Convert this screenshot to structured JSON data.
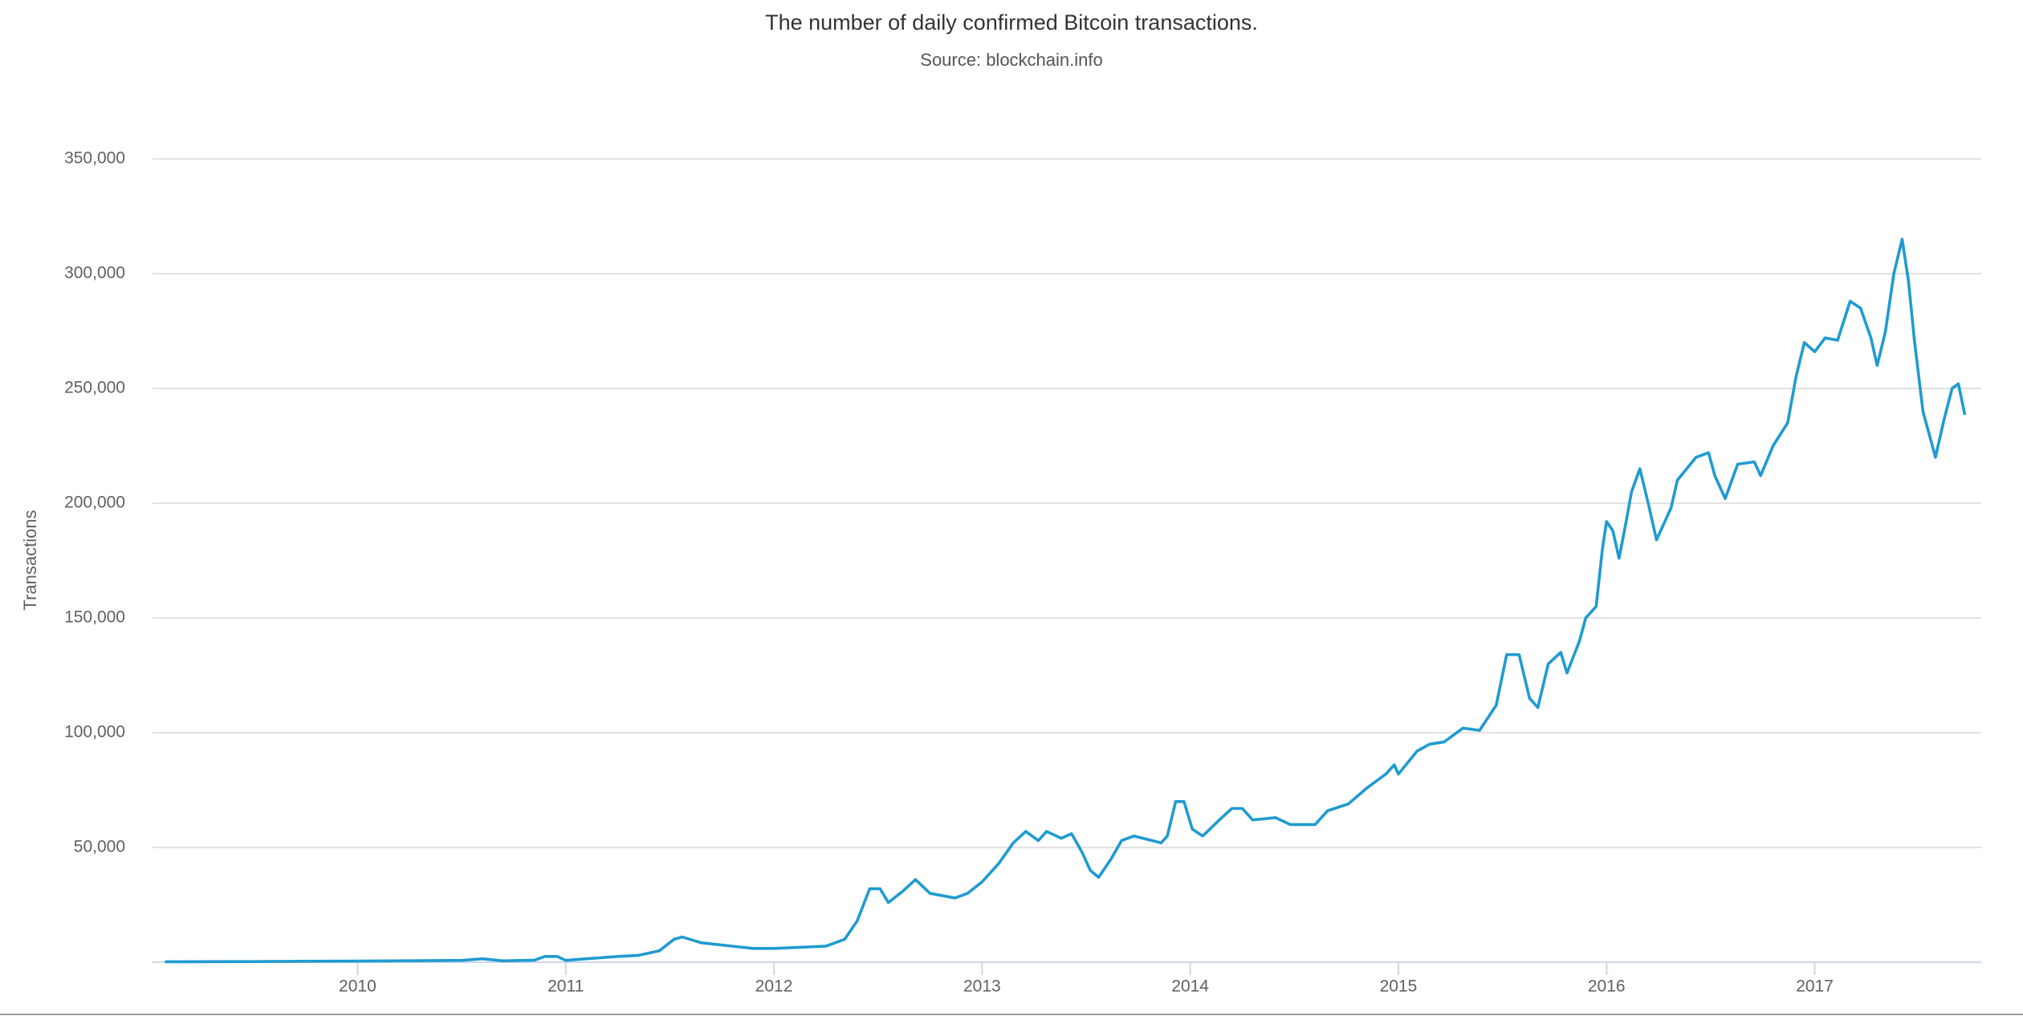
{
  "chart_data": {
    "type": "line",
    "title": "The number of daily confirmed Bitcoin transactions.",
    "subtitle": "Source: blockchain.info",
    "y_label": "Transactions",
    "xlim": [
      2009.015,
      2017.8
    ],
    "xticks": [
      2010,
      2011,
      2012,
      2013,
      2014,
      2015,
      2016,
      2017
    ],
    "ylim": [
      0,
      350000
    ],
    "yticks": [
      {
        "value": 50000,
        "label": "50,000"
      },
      {
        "value": 100000,
        "label": "100,000"
      },
      {
        "value": 150000,
        "label": "150,000"
      },
      {
        "value": 200000,
        "label": "200,000"
      },
      {
        "value": 250000,
        "label": "250,000"
      },
      {
        "value": 300000,
        "label": "300,000"
      },
      {
        "value": 350000,
        "label": "350,000"
      }
    ],
    "grid": true,
    "x": [
      2009.08,
      2009.5,
      2010.0,
      2010.5,
      2010.6,
      2010.7,
      2010.85,
      2010.9,
      2010.96,
      2011.0,
      2011.1,
      2011.25,
      2011.35,
      2011.45,
      2011.52,
      2011.56,
      2011.65,
      2011.8,
      2011.9,
      2012.0,
      2012.25,
      2012.34,
      2012.4,
      2012.46,
      2012.51,
      2012.55,
      2012.62,
      2012.68,
      2012.75,
      2012.87,
      2012.93,
      2013.0,
      2013.08,
      2013.15,
      2013.21,
      2013.27,
      2013.31,
      2013.38,
      2013.43,
      2013.48,
      2013.52,
      2013.56,
      2013.62,
      2013.67,
      2013.73,
      2013.86,
      2013.89,
      2013.93,
      2013.97,
      2014.01,
      2014.06,
      2014.14,
      2014.2,
      2014.25,
      2014.3,
      2014.41,
      2014.48,
      2014.6,
      2014.66,
      2014.76,
      2014.85,
      2014.94,
      2014.98,
      2015.0,
      2015.09,
      2015.15,
      2015.22,
      2015.31,
      2015.39,
      2015.47,
      2015.52,
      2015.58,
      2015.63,
      2015.67,
      2015.72,
      2015.78,
      2015.81,
      2015.87,
      2015.9,
      2015.95,
      2015.98,
      2016.0,
      2016.03,
      2016.06,
      2016.09,
      2016.12,
      2016.16,
      2016.2,
      2016.24,
      2016.31,
      2016.34,
      2016.43,
      2016.49,
      2016.52,
      2016.57,
      2016.63,
      2016.71,
      2016.74,
      2016.8,
      2016.87,
      2016.91,
      2016.95,
      2017.0,
      2017.05,
      2017.11,
      2017.17,
      2017.22,
      2017.27,
      2017.3,
      2017.34,
      2017.38,
      2017.42,
      2017.45,
      2017.48,
      2017.52,
      2017.55,
      2017.58,
      2017.62,
      2017.66,
      2017.69,
      2017.72
    ],
    "series": [
      {
        "name": "Transactions",
        "color": "#1f9bd1",
        "values": [
          200,
          300,
          500,
          800,
          1500,
          600,
          900,
          2500,
          2500,
          800,
          1500,
          2500,
          3000,
          5000,
          10000,
          11000,
          8500,
          7000,
          6000,
          6000,
          7000,
          10000,
          18000,
          32000,
          32000,
          26000,
          31000,
          36000,
          30000,
          28000,
          30000,
          35000,
          43000,
          52000,
          57000,
          53000,
          57000,
          54000,
          56000,
          48000,
          40000,
          37000,
          45000,
          53000,
          55000,
          52000,
          55000,
          70000,
          70000,
          58000,
          55000,
          62000,
          67000,
          67000,
          62000,
          63000,
          60000,
          60000,
          66000,
          69000,
          76000,
          82000,
          86000,
          82000,
          92000,
          95000,
          96000,
          102000,
          101000,
          112000,
          134000,
          134000,
          115000,
          111000,
          130000,
          135000,
          126000,
          140000,
          150000,
          155000,
          180000,
          192000,
          188000,
          176000,
          190000,
          205000,
          215000,
          200000,
          184000,
          198000,
          210000,
          220000,
          222000,
          212000,
          202000,
          217000,
          218000,
          212000,
          225000,
          235000,
          255000,
          270000,
          266000,
          272000,
          271000,
          288000,
          285000,
          272000,
          260000,
          275000,
          300000,
          315000,
          297000,
          270000,
          240000,
          230000,
          220000,
          236000,
          250000,
          252000,
          239000
        ]
      }
    ]
  }
}
